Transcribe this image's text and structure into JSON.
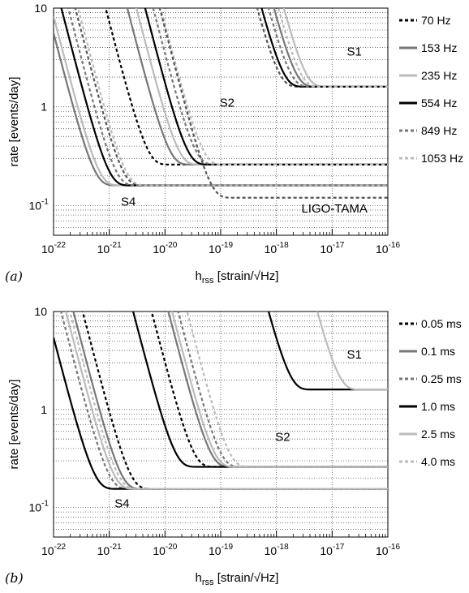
{
  "chart_data": [
    {
      "type": "line",
      "panel_label": "(a)",
      "xlabel": "h_rss [strain/√Hz]",
      "ylabel": "rate [events/day]",
      "xscale": "log",
      "yscale": "log",
      "xlim": [
        1e-22,
        1e-16
      ],
      "ylim": [
        0.05,
        10
      ],
      "grid": true,
      "legend_position": "right",
      "x_ticks": [
        "10^-22",
        "10^-21",
        "10^-20",
        "10^-19",
        "10^-18",
        "10^-17",
        "10^-16"
      ],
      "y_ticks": [
        "10^-1",
        "1",
        "10"
      ],
      "region_labels": [
        {
          "text": "S1",
          "x": 2.5e-17,
          "y": 3.3
        },
        {
          "text": "S2",
          "x": 1.3e-19,
          "y": 1.0
        },
        {
          "text": "S4",
          "x": 2.2e-21,
          "y": 0.1
        },
        {
          "text": "LIGO-TAMA",
          "x": 1.1e-17,
          "y": 0.085
        }
      ],
      "series": [
        {
          "name": "70 Hz",
          "group": "S1",
          "asymptote": 1.6,
          "threshold": 1e-18,
          "color": "#555555",
          "dash": "4,3"
        },
        {
          "name": "153 Hz",
          "group": "S1",
          "asymptote": 1.6,
          "threshold": 2e-18,
          "color": "#777777",
          "dash": ""
        },
        {
          "name": "235 Hz",
          "group": "S1",
          "asymptote": 1.6,
          "threshold": 3e-18,
          "color": "#bbbbbb",
          "dash": ""
        },
        {
          "name": "554 Hz",
          "group": "S1",
          "asymptote": 1.6,
          "threshold": 1.2e-18,
          "color": "#000000",
          "dash": ""
        },
        {
          "name": "849 Hz",
          "group": "S1",
          "asymptote": 1.6,
          "threshold": 1.6e-18,
          "color": "#777777",
          "dash": "4,3"
        },
        {
          "name": "1053 Hz",
          "group": "S1",
          "asymptote": 1.6,
          "threshold": 2.4e-18,
          "color": "#bbbbbb",
          "dash": "4,3"
        },
        {
          "name": "70 Hz",
          "group": "S2",
          "asymptote": 0.26,
          "threshold": 4.5e-21,
          "color": "#000000",
          "dash": "4,3"
        },
        {
          "name": "153 Hz",
          "group": "S2",
          "asymptote": 0.26,
          "threshold": 1.1e-20,
          "color": "#777777",
          "dash": ""
        },
        {
          "name": "235 Hz",
          "group": "S2",
          "asymptote": 0.26,
          "threshold": 1.6e-20,
          "color": "#bbbbbb",
          "dash": ""
        },
        {
          "name": "554 Hz",
          "group": "S2",
          "asymptote": 0.26,
          "threshold": 2.3e-20,
          "color": "#000000",
          "dash": ""
        },
        {
          "name": "849 Hz",
          "group": "S2",
          "asymptote": 0.26,
          "threshold": 3.2e-20,
          "color": "#777777",
          "dash": "4,3"
        },
        {
          "name": "1053 Hz",
          "group": "S2",
          "asymptote": 0.26,
          "threshold": 4.4e-20,
          "color": "#bbbbbb",
          "dash": "4,3"
        },
        {
          "name": "70 Hz",
          "group": "S4",
          "asymptote": 0.16,
          "threshold": 1.6e-21,
          "color": "#555555",
          "dash": "4,3"
        },
        {
          "name": "153 Hz",
          "group": "S4",
          "asymptote": 0.16,
          "threshold": 5e-22,
          "color": "#777777",
          "dash": ""
        },
        {
          "name": "235 Hz",
          "group": "S4",
          "asymptote": 0.16,
          "threshold": 6e-22,
          "color": "#bbbbbb",
          "dash": ""
        },
        {
          "name": "554 Hz",
          "group": "S4",
          "asymptote": 0.16,
          "threshold": 9e-22,
          "color": "#000000",
          "dash": ""
        },
        {
          "name": "849 Hz",
          "group": "S4",
          "asymptote": 0.16,
          "threshold": 1.2e-21,
          "color": "#777777",
          "dash": "4,3"
        },
        {
          "name": "1053 Hz",
          "group": "S4",
          "asymptote": 0.16,
          "threshold": 1.8e-21,
          "color": "#bbbbbb",
          "dash": "4,3"
        },
        {
          "name": "849 Hz",
          "group": "LIGO-TAMA",
          "asymptote": 0.12,
          "threshold": 6e-20,
          "color": "#555555",
          "dash": "4,3"
        }
      ],
      "legend": [
        {
          "name": "70 Hz",
          "color": "#000000",
          "dash": "4,3"
        },
        {
          "name": "153 Hz",
          "color": "#777777",
          "dash": ""
        },
        {
          "name": "235 Hz",
          "color": "#bbbbbb",
          "dash": ""
        },
        {
          "name": "554 Hz",
          "color": "#000000",
          "dash": ""
        },
        {
          "name": "849 Hz",
          "color": "#777777",
          "dash": "4,3"
        },
        {
          "name": "1053 Hz",
          "color": "#bbbbbb",
          "dash": "4,3"
        }
      ]
    },
    {
      "type": "line",
      "panel_label": "(b)",
      "xlabel": "h_rss [strain/√Hz]",
      "ylabel": "rate [events/day]",
      "xscale": "log",
      "yscale": "log",
      "xlim": [
        1e-22,
        1e-16
      ],
      "ylim": [
        0.05,
        10
      ],
      "grid": true,
      "legend_position": "right",
      "x_ticks": [
        "10^-22",
        "10^-21",
        "10^-20",
        "10^-19",
        "10^-18",
        "10^-17",
        "10^-16"
      ],
      "y_ticks": [
        "10^-1",
        "1",
        "10"
      ],
      "region_labels": [
        {
          "text": "S1",
          "x": 2.5e-17,
          "y": 3.3
        },
        {
          "text": "S2",
          "x": 1.3e-18,
          "y": 0.48
        },
        {
          "text": "S4",
          "x": 1.7e-21,
          "y": 0.1
        }
      ],
      "series": [
        {
          "name": "1.0 ms",
          "group": "S1",
          "asymptote": 1.6,
          "threshold": 1.6e-18,
          "color": "#000000",
          "dash": ""
        },
        {
          "name": "2.5 ms",
          "group": "S1",
          "asymptote": 1.6,
          "threshold": 1.2e-17,
          "color": "#bbbbbb",
          "dash": ""
        },
        {
          "name": "0.05 ms",
          "group": "S2",
          "asymptote": 0.26,
          "threshold": 3e-20,
          "color": "#000000",
          "dash": "4,3"
        },
        {
          "name": "0.1 ms",
          "group": "S2",
          "asymptote": 0.26,
          "threshold": 6e-20,
          "color": "#777777",
          "dash": ""
        },
        {
          "name": "0.25 ms",
          "group": "S2",
          "asymptote": 0.26,
          "threshold": 9e-20,
          "color": "#777777",
          "dash": "4,3"
        },
        {
          "name": "1.0 ms",
          "group": "S2",
          "asymptote": 0.26,
          "threshold": 1.4e-20,
          "color": "#000000",
          "dash": ""
        },
        {
          "name": "2.5 ms",
          "group": "S2",
          "asymptote": 0.26,
          "threshold": 7e-20,
          "color": "#bbbbbb",
          "dash": ""
        },
        {
          "name": "4.0 ms",
          "group": "S2",
          "asymptote": 0.26,
          "threshold": 1.3e-19,
          "color": "#bbbbbb",
          "dash": "4,3"
        },
        {
          "name": "0.05 ms",
          "group": "S4",
          "asymptote": 0.155,
          "threshold": 2.2e-21,
          "color": "#000000",
          "dash": "4,3"
        },
        {
          "name": "0.1 ms",
          "group": "S4",
          "asymptote": 0.155,
          "threshold": 1.5e-21,
          "color": "#777777",
          "dash": ""
        },
        {
          "name": "0.25 ms",
          "group": "S4",
          "asymptote": 0.155,
          "threshold": 9e-22,
          "color": "#777777",
          "dash": "4,3"
        },
        {
          "name": "1.0 ms",
          "group": "S4",
          "asymptote": 0.155,
          "threshold": 5e-22,
          "color": "#000000",
          "dash": ""
        },
        {
          "name": "2.5 ms",
          "group": "S4",
          "asymptote": 0.155,
          "threshold": 1.1e-21,
          "color": "#bbbbbb",
          "dash": ""
        },
        {
          "name": "4.0 ms",
          "group": "S4",
          "asymptote": 0.155,
          "threshold": 1.3e-21,
          "color": "#bbbbbb",
          "dash": "4,3"
        }
      ],
      "legend": [
        {
          "name": "0.05 ms",
          "color": "#000000",
          "dash": "4,3"
        },
        {
          "name": "0.1 ms",
          "color": "#777777",
          "dash": ""
        },
        {
          "name": "0.25 ms",
          "color": "#777777",
          "dash": "4,3"
        },
        {
          "name": "1.0 ms",
          "color": "#000000",
          "dash": ""
        },
        {
          "name": "2.5 ms",
          "color": "#bbbbbb",
          "dash": ""
        },
        {
          "name": "4.0 ms",
          "color": "#bbbbbb",
          "dash": "4,3"
        }
      ]
    }
  ]
}
